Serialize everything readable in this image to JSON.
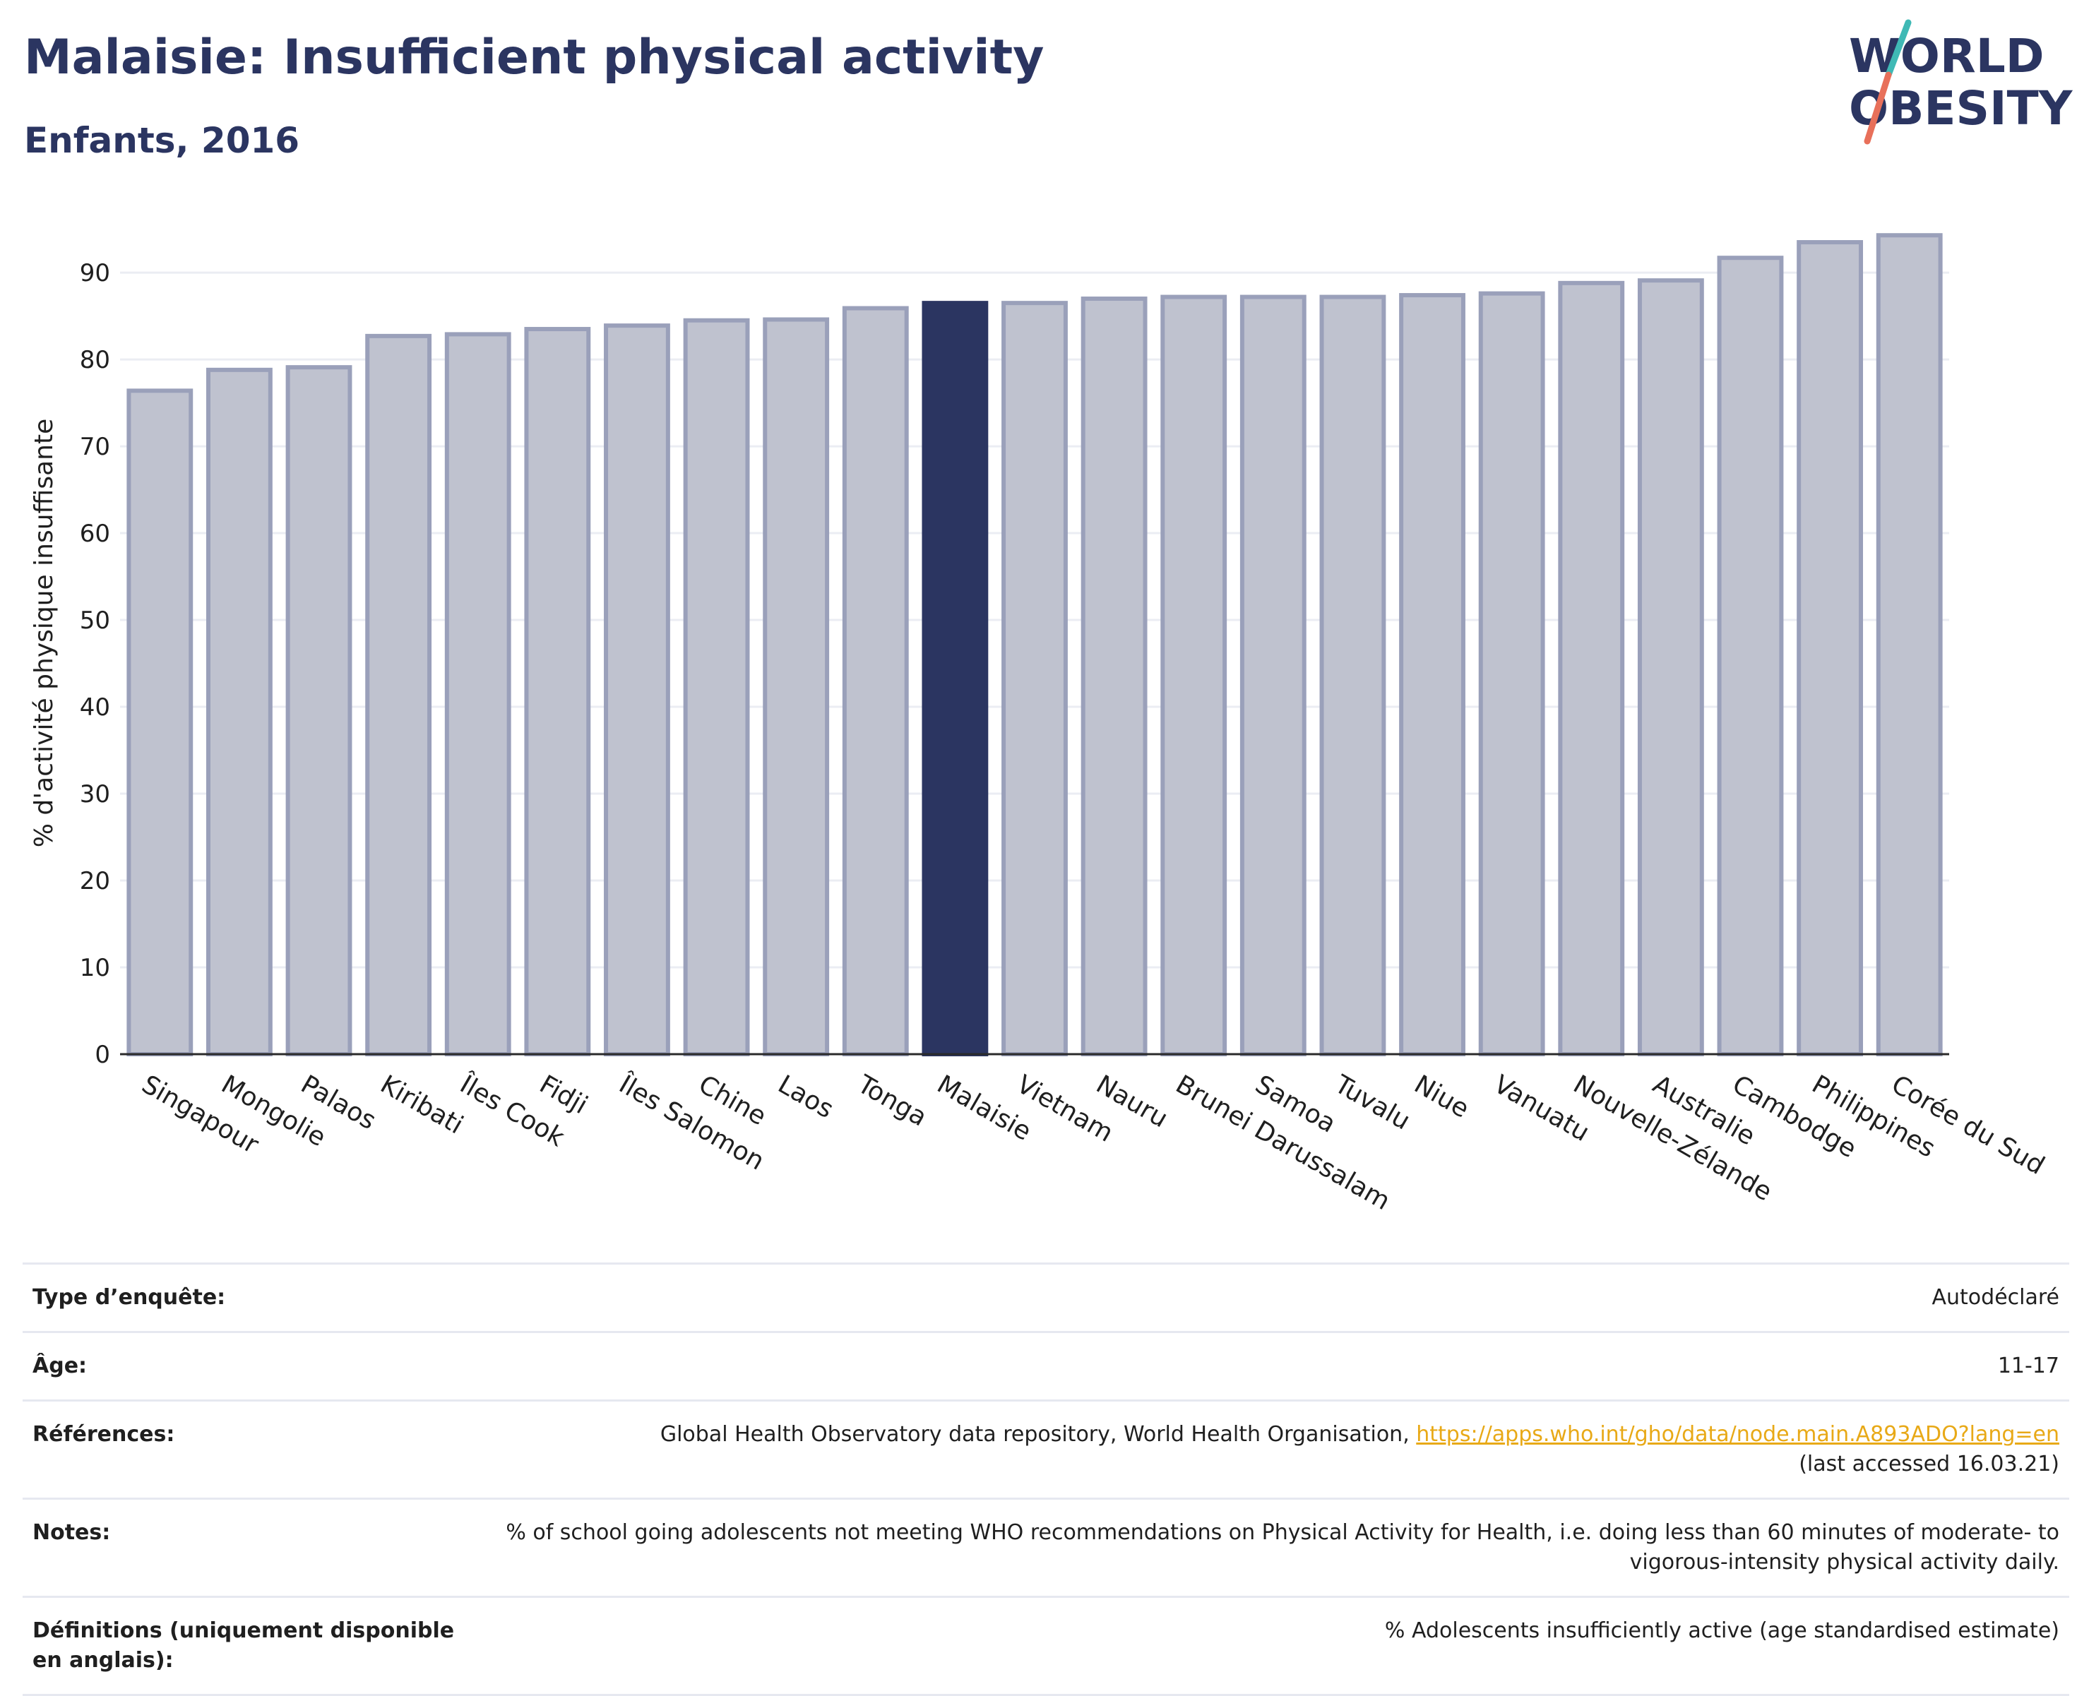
{
  "header": {
    "title": "Malaisie: Insufficient physical activity",
    "subtitle": "Enfants, 2016"
  },
  "logo": {
    "line1": "WORLD",
    "line2": "OBESITY"
  },
  "colors": {
    "highlight": "#2b3561",
    "bar_fill": "#bfc2cf",
    "bar_stroke": "#9aa0ba",
    "grid": "#ebedf3",
    "logo_text": "#2b3561",
    "logo_slash_top": "#3fb9b5",
    "logo_slash_bottom": "#e8705a"
  },
  "chart_data": {
    "type": "bar",
    "title": "",
    "xlabel": "",
    "ylabel": "% d'activité physique insuffisante",
    "ylim": [
      0,
      97
    ],
    "yticks": [
      0,
      10,
      20,
      30,
      40,
      50,
      60,
      70,
      80,
      90
    ],
    "grid": true,
    "highlight_category": "Malaisie",
    "categories": [
      "Singapour",
      "Mongolie",
      "Palaos",
      "Kiribati",
      "Îles Cook",
      "Fidji",
      "Îles Salomon",
      "Chine",
      "Laos",
      "Tonga",
      "Malaisie",
      "Vietnam",
      "Nauru",
      "Brunei Darussalam",
      "Samoa",
      "Tuvalu",
      "Niue",
      "Vanuatu",
      "Nouvelle-Zélande",
      "Australie",
      "Cambodge",
      "Philippines",
      "Corée du Sud"
    ],
    "values": [
      76.4,
      78.8,
      79.1,
      82.7,
      82.9,
      83.5,
      83.9,
      84.5,
      84.6,
      85.9,
      86.5,
      86.5,
      87.0,
      87.2,
      87.2,
      87.2,
      87.4,
      87.6,
      88.8,
      89.1,
      91.7,
      93.5,
      94.3
    ]
  },
  "info": {
    "rows": [
      {
        "label": "Type d’enquête:",
        "value": "Autodéclaré"
      },
      {
        "label": "Âge:",
        "value": "11-17"
      },
      {
        "label": "Références:",
        "value": "Global Health Observatory data repository, World Health Organisation, ",
        "link": "https://apps.who.int/gho/data/node.main.A893ADO?lang=en",
        "value_after": "(last accessed 16.03.21)"
      },
      {
        "label": "Notes:",
        "value": "% of school going adolescents not meeting WHO recommendations on Physical Activity for Health, i.e. doing less than 60 minutes of moderate- to vigorous-intensity physical activity daily."
      },
      {
        "label": "Définitions (uniquement disponible en anglais):",
        "value": "% Adolescents insufficiently active (age standardised estimate)"
      }
    ]
  }
}
